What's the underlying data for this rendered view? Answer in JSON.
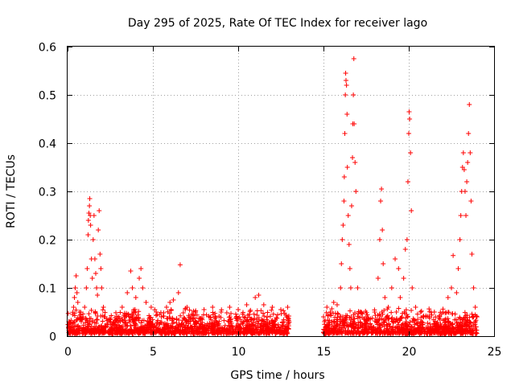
{
  "chart_data": {
    "type": "scatter",
    "title": "Day 295 of 2025, Rate Of TEC Index for receiver lago",
    "xlabel": "GPS time / hours",
    "ylabel": "ROTI / TECUs",
    "xlim": [
      0,
      25
    ],
    "ylim": [
      0,
      0.6
    ],
    "xticks": [
      0,
      5,
      10,
      15,
      20,
      25
    ],
    "yticks": [
      0,
      0.1,
      0.2,
      0.3,
      0.4,
      0.5,
      0.6
    ],
    "xtick_labels": [
      "0",
      "5",
      "10",
      "15",
      "20",
      "25"
    ],
    "ytick_labels": [
      "0",
      "0.1",
      "0.2",
      "0.3",
      "0.4",
      "0.5",
      "0.6"
    ],
    "grid": true,
    "marker": "+",
    "color": "#ff0000",
    "data_gap_hours": [
      13.0,
      15.0
    ],
    "series": [
      {
        "name": "ROTI",
        "points": [
          [
            0.05,
            0.018
          ],
          [
            0.1,
            0.012
          ],
          [
            0.2,
            0.025
          ],
          [
            0.3,
            0.045
          ],
          [
            0.35,
            0.06
          ],
          [
            0.4,
            0.08
          ],
          [
            0.45,
            0.1
          ],
          [
            0.5,
            0.125
          ],
          [
            0.55,
            0.09
          ],
          [
            0.6,
            0.07
          ],
          [
            0.7,
            0.05
          ],
          [
            0.8,
            0.03
          ],
          [
            0.9,
            0.04
          ],
          [
            1.0,
            0.06
          ],
          [
            1.1,
            0.1
          ],
          [
            1.15,
            0.14
          ],
          [
            1.2,
            0.21
          ],
          [
            1.22,
            0.24
          ],
          [
            1.25,
            0.255
          ],
          [
            1.28,
            0.27
          ],
          [
            1.3,
            0.285
          ],
          [
            1.33,
            0.25
          ],
          [
            1.35,
            0.23
          ],
          [
            1.4,
            0.16
          ],
          [
            1.45,
            0.12
          ],
          [
            1.5,
            0.2
          ],
          [
            1.55,
            0.25
          ],
          [
            1.6,
            0.16
          ],
          [
            1.65,
            0.13
          ],
          [
            1.7,
            0.1
          ],
          [
            1.75,
            0.085
          ],
          [
            1.8,
            0.22
          ],
          [
            1.85,
            0.26
          ],
          [
            1.9,
            0.17
          ],
          [
            1.95,
            0.14
          ],
          [
            2.0,
            0.1
          ],
          [
            2.1,
            0.06
          ],
          [
            2.2,
            0.04
          ],
          [
            2.5,
            0.03
          ],
          [
            3.0,
            0.04
          ],
          [
            3.2,
            0.06
          ],
          [
            3.5,
            0.09
          ],
          [
            3.7,
            0.135
          ],
          [
            3.8,
            0.1
          ],
          [
            4.0,
            0.08
          ],
          [
            4.2,
            0.12
          ],
          [
            4.3,
            0.14
          ],
          [
            4.4,
            0.1
          ],
          [
            4.6,
            0.07
          ],
          [
            4.9,
            0.06
          ],
          [
            5.2,
            0.05
          ],
          [
            5.5,
            0.04
          ],
          [
            5.8,
            0.06
          ],
          [
            6.0,
            0.07
          ],
          [
            6.2,
            0.075
          ],
          [
            6.5,
            0.09
          ],
          [
            6.6,
            0.148
          ],
          [
            7.0,
            0.06
          ],
          [
            7.5,
            0.05
          ],
          [
            8.0,
            0.055
          ],
          [
            8.5,
            0.06
          ],
          [
            9.0,
            0.05
          ],
          [
            9.5,
            0.06
          ],
          [
            10.0,
            0.055
          ],
          [
            10.5,
            0.065
          ],
          [
            11.0,
            0.08
          ],
          [
            11.2,
            0.085
          ],
          [
            11.5,
            0.065
          ],
          [
            12.0,
            0.06
          ],
          [
            12.5,
            0.055
          ],
          [
            12.9,
            0.06
          ],
          [
            15.0,
            0.04
          ],
          [
            15.2,
            0.06
          ],
          [
            15.4,
            0.05
          ],
          [
            15.6,
            0.07
          ],
          [
            15.8,
            0.065
          ],
          [
            16.0,
            0.1
          ],
          [
            16.05,
            0.15
          ],
          [
            16.1,
            0.2
          ],
          [
            16.15,
            0.23
          ],
          [
            16.2,
            0.28
          ],
          [
            16.22,
            0.33
          ],
          [
            16.25,
            0.42
          ],
          [
            16.28,
            0.5
          ],
          [
            16.3,
            0.545
          ],
          [
            16.32,
            0.53
          ],
          [
            16.35,
            0.52
          ],
          [
            16.38,
            0.46
          ],
          [
            16.4,
            0.35
          ],
          [
            16.45,
            0.25
          ],
          [
            16.5,
            0.19
          ],
          [
            16.55,
            0.14
          ],
          [
            16.6,
            0.1
          ],
          [
            16.65,
            0.27
          ],
          [
            16.7,
            0.37
          ],
          [
            16.72,
            0.44
          ],
          [
            16.75,
            0.5
          ],
          [
            16.78,
            0.575
          ],
          [
            16.8,
            0.44
          ],
          [
            16.85,
            0.36
          ],
          [
            16.9,
            0.3
          ],
          [
            17.0,
            0.1
          ],
          [
            17.2,
            0.05
          ],
          [
            17.5,
            0.04
          ],
          [
            18.0,
            0.05
          ],
          [
            18.2,
            0.12
          ],
          [
            18.3,
            0.2
          ],
          [
            18.35,
            0.28
          ],
          [
            18.4,
            0.305
          ],
          [
            18.45,
            0.22
          ],
          [
            18.5,
            0.15
          ],
          [
            18.6,
            0.08
          ],
          [
            18.8,
            0.06
          ],
          [
            19.0,
            0.1
          ],
          [
            19.2,
            0.16
          ],
          [
            19.4,
            0.14
          ],
          [
            19.5,
            0.08
          ],
          [
            19.7,
            0.12
          ],
          [
            19.8,
            0.18
          ],
          [
            19.9,
            0.2
          ],
          [
            19.95,
            0.32
          ],
          [
            20.0,
            0.42
          ],
          [
            20.02,
            0.465
          ],
          [
            20.05,
            0.45
          ],
          [
            20.1,
            0.38
          ],
          [
            20.15,
            0.26
          ],
          [
            20.2,
            0.1
          ],
          [
            20.4,
            0.06
          ],
          [
            20.7,
            0.05
          ],
          [
            21.0,
            0.04
          ],
          [
            21.5,
            0.05
          ],
          [
            21.8,
            0.04
          ],
          [
            22.0,
            0.05
          ],
          [
            22.3,
            0.08
          ],
          [
            22.5,
            0.1
          ],
          [
            22.6,
            0.167
          ],
          [
            22.8,
            0.09
          ],
          [
            22.9,
            0.14
          ],
          [
            23.0,
            0.2
          ],
          [
            23.05,
            0.25
          ],
          [
            23.1,
            0.3
          ],
          [
            23.15,
            0.35
          ],
          [
            23.2,
            0.38
          ],
          [
            23.25,
            0.345
          ],
          [
            23.3,
            0.3
          ],
          [
            23.35,
            0.25
          ],
          [
            23.4,
            0.32
          ],
          [
            23.45,
            0.36
          ],
          [
            23.5,
            0.42
          ],
          [
            23.55,
            0.48
          ],
          [
            23.6,
            0.38
          ],
          [
            23.65,
            0.28
          ],
          [
            23.7,
            0.17
          ],
          [
            23.8,
            0.1
          ],
          [
            23.9,
            0.06
          ],
          [
            24.0,
            0.04
          ]
        ]
      }
    ]
  }
}
